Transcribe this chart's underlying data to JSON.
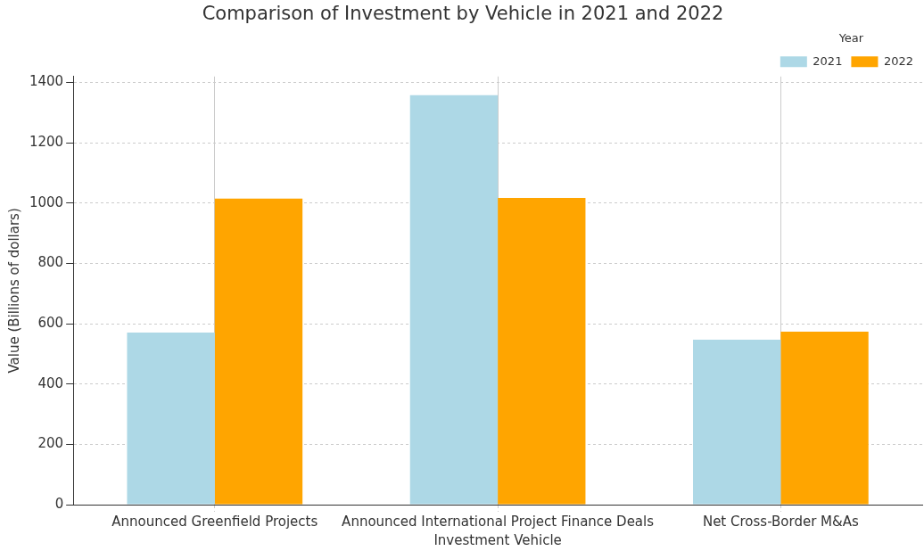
{
  "chart_data": {
    "type": "bar",
    "title": "Comparison of Investment by Vehicle in 2021 and 2022",
    "xlabel": "Investment Vehicle",
    "ylabel": "Value (Billions of dollars)",
    "legend_title": "Year",
    "categories": [
      "Announced Greenfield Projects",
      "Announced International Project Finance Deals",
      "Net Cross-Border M&As"
    ],
    "series": [
      {
        "name": "2021",
        "color": "#add8e6",
        "values": [
          571,
          1358,
          547
        ]
      },
      {
        "name": "2022",
        "color": "#ffa500",
        "values": [
          1015,
          1017,
          574
        ]
      }
    ],
    "ylim": [
      0,
      1420
    ],
    "yticks": [
      0,
      200,
      400,
      600,
      800,
      1000,
      1200,
      1400
    ],
    "grid": true,
    "legend": "top right"
  }
}
